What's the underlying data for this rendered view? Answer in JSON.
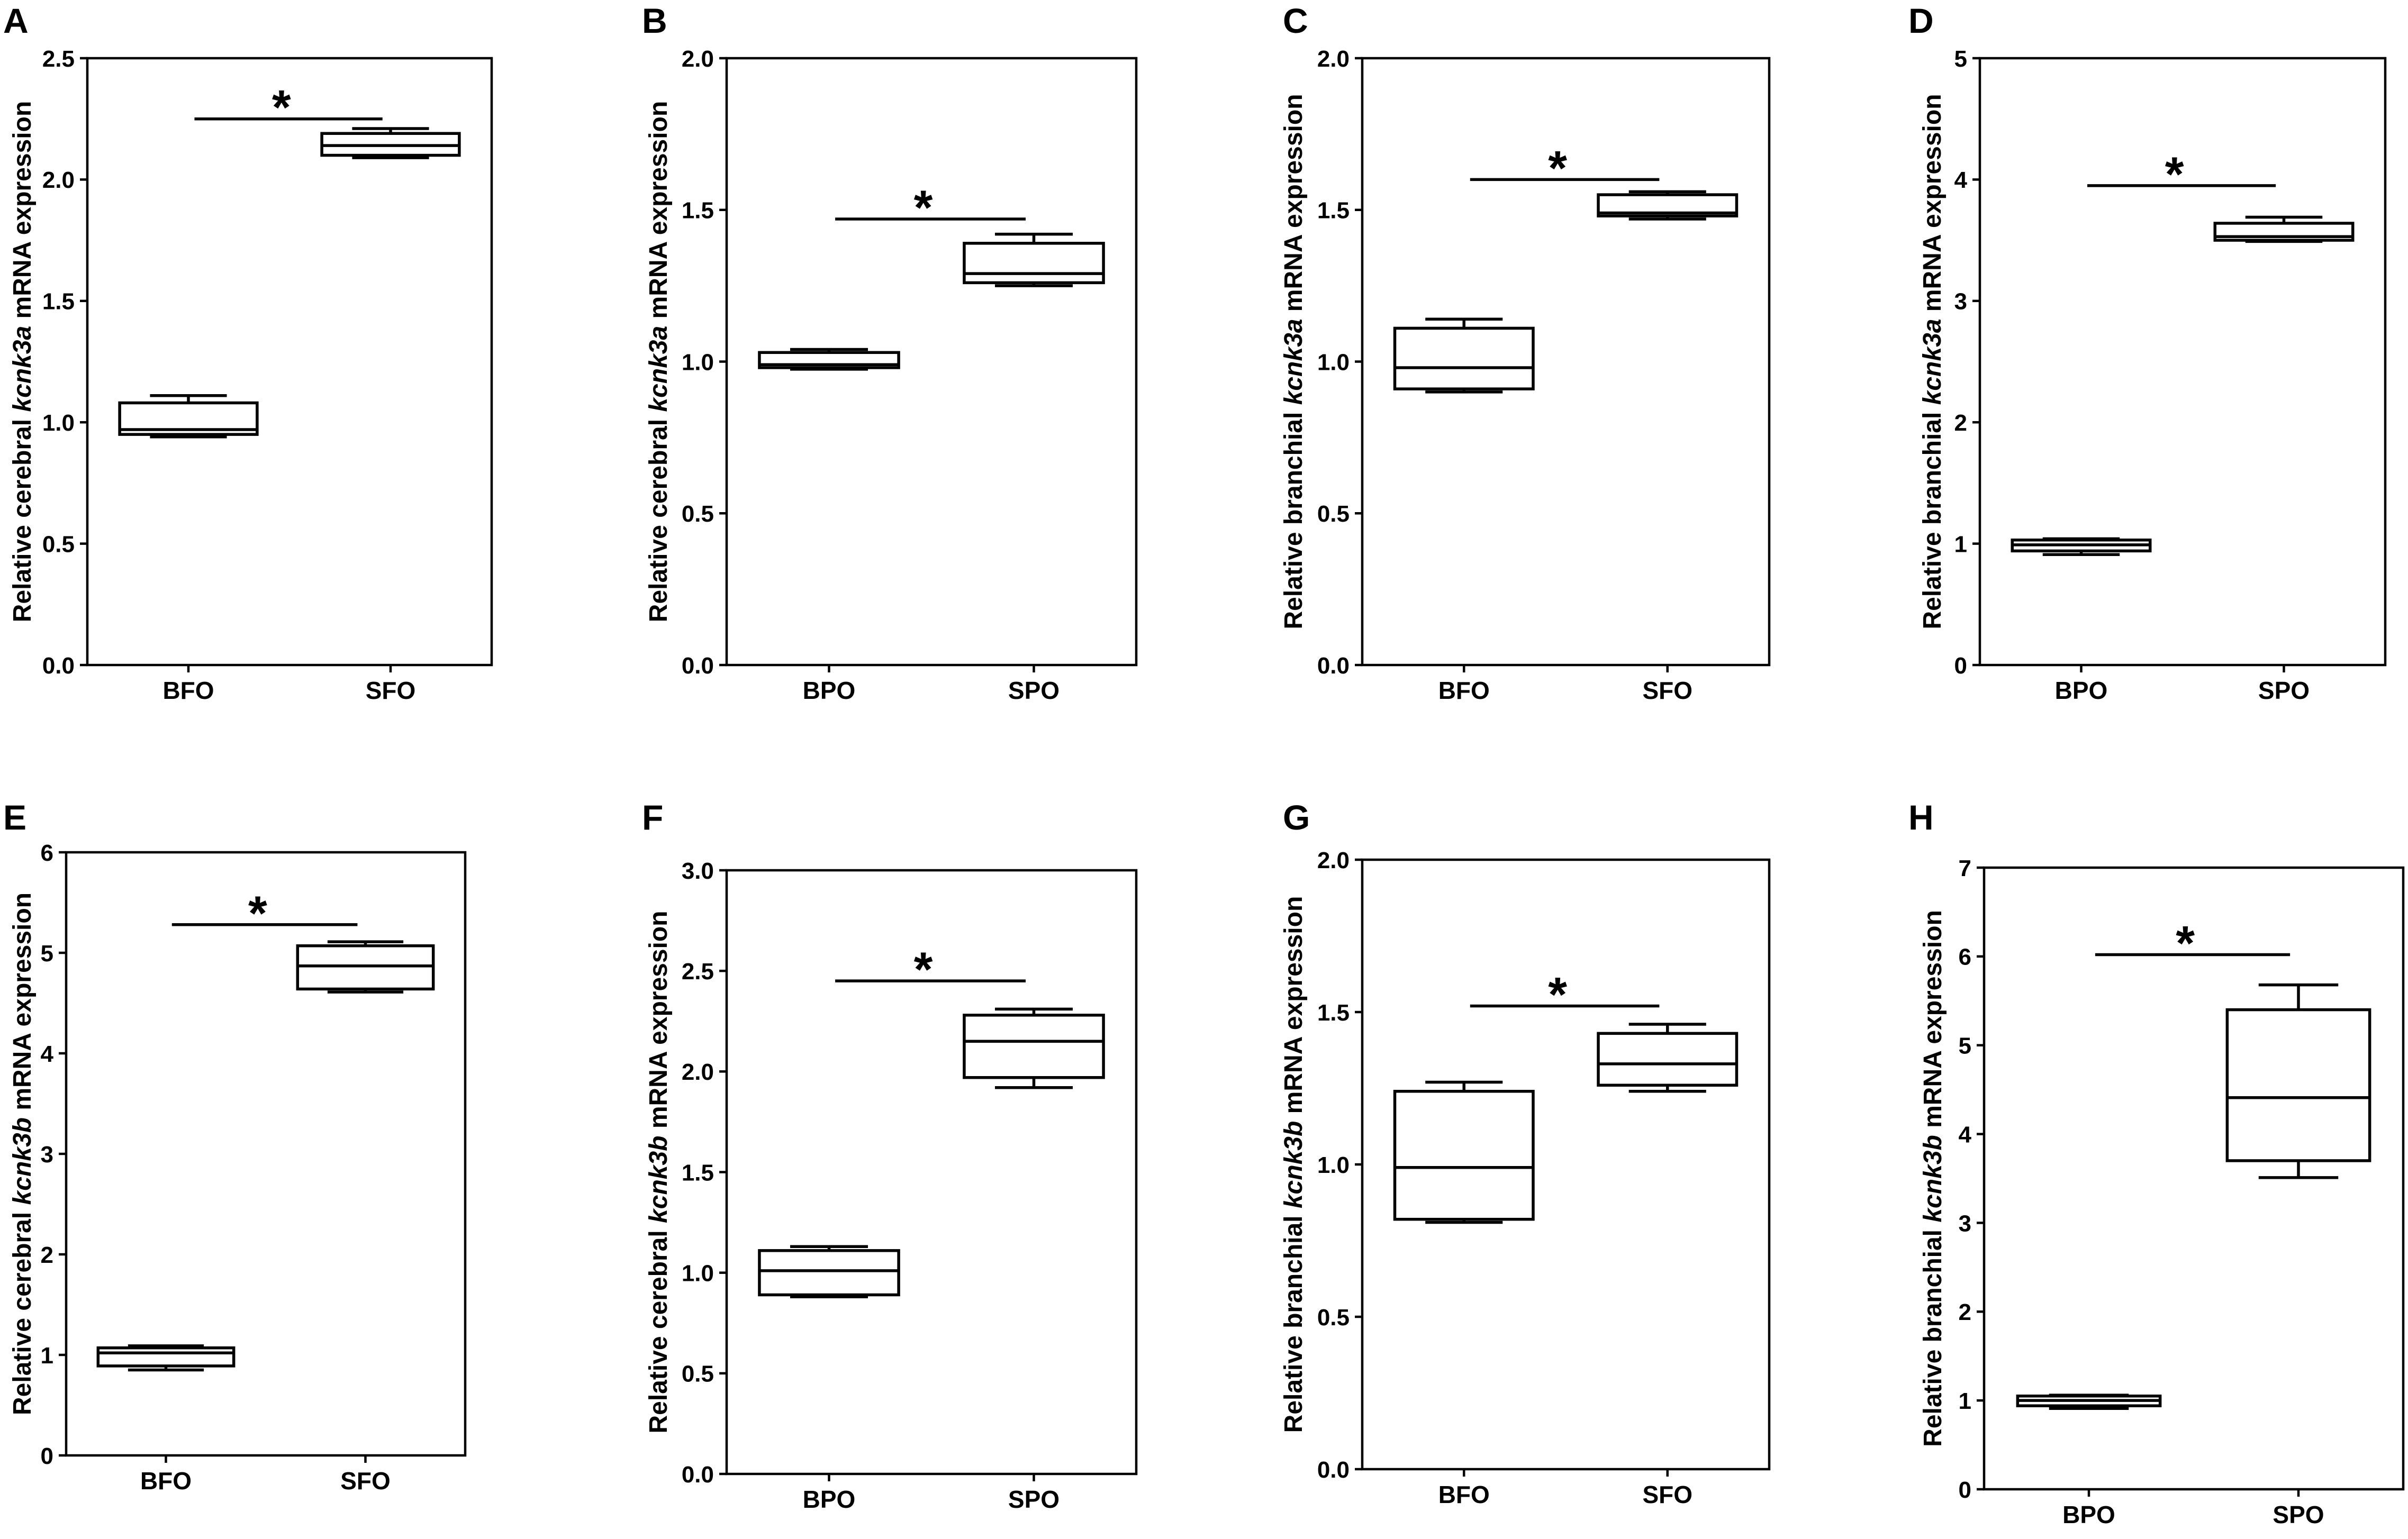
{
  "chart_data": [
    {
      "panel": "A",
      "type": "box",
      "ylim": [
        0,
        2.5
      ],
      "yticks": [
        "0.0",
        "0.5",
        "1.0",
        "1.5",
        "2.0",
        "2.5"
      ],
      "ylabel": {
        "pre": "Relative cerebral",
        "gene": "kcnk3a",
        "post": "mRNA expression"
      },
      "boxes": [
        {
          "category": "BFO",
          "min": 0.94,
          "q1": 0.95,
          "median": 0.97,
          "q3": 1.08,
          "max": 1.11
        },
        {
          "category": "SFO",
          "min": 2.09,
          "q1": 2.1,
          "median": 2.14,
          "q3": 2.19,
          "max": 2.21
        }
      ],
      "significance": {
        "y": 2.25,
        "label": "*"
      }
    },
    {
      "panel": "B",
      "type": "box",
      "ylim": [
        0,
        2.0
      ],
      "yticks": [
        "0.0",
        "0.5",
        "1.0",
        "1.5",
        "2.0"
      ],
      "ylabel": {
        "pre": "Relative cerebral",
        "gene": "kcnk3a",
        "post": "mRNA expression"
      },
      "boxes": [
        {
          "category": "BPO",
          "min": 0.975,
          "q1": 0.98,
          "median": 0.99,
          "q3": 1.03,
          "max": 1.04
        },
        {
          "category": "SPO",
          "min": 1.25,
          "q1": 1.26,
          "median": 1.29,
          "q3": 1.39,
          "max": 1.42
        }
      ],
      "significance": {
        "y": 1.47,
        "label": "*"
      }
    },
    {
      "panel": "C",
      "type": "box",
      "ylim": [
        0,
        2.0
      ],
      "yticks": [
        "0.0",
        "0.5",
        "1.0",
        "1.5",
        "2.0"
      ],
      "ylabel": {
        "pre": "Relative branchial",
        "gene": "kcnk3a",
        "post": "mRNA expression"
      },
      "boxes": [
        {
          "category": "BFO",
          "min": 0.9,
          "q1": 0.91,
          "median": 0.98,
          "q3": 1.11,
          "max": 1.14
        },
        {
          "category": "SFO",
          "min": 1.47,
          "q1": 1.48,
          "median": 1.49,
          "q3": 1.55,
          "max": 1.56
        }
      ],
      "significance": {
        "y": 1.6,
        "label": "*"
      }
    },
    {
      "panel": "D",
      "type": "box",
      "ylim": [
        0,
        5
      ],
      "yticks": [
        "0",
        "1",
        "2",
        "3",
        "4",
        "5"
      ],
      "ylabel": {
        "pre": "Relative branchial",
        "gene": "kcnk3a",
        "post": "mRNA expression"
      },
      "boxes": [
        {
          "category": "BPO",
          "min": 0.91,
          "q1": 0.94,
          "median": 0.99,
          "q3": 1.03,
          "max": 1.04
        },
        {
          "category": "SPO",
          "min": 3.49,
          "q1": 3.5,
          "median": 3.53,
          "q3": 3.64,
          "max": 3.69
        }
      ],
      "significance": {
        "y": 3.95,
        "label": "*"
      }
    },
    {
      "panel": "E",
      "type": "box",
      "ylim": [
        0,
        6
      ],
      "yticks": [
        "0",
        "1",
        "2",
        "3",
        "4",
        "5",
        "6"
      ],
      "ylabel": {
        "pre": "Relative cerebral",
        "gene": "kcnk3b",
        "post": "mRNA expression"
      },
      "boxes": [
        {
          "category": "BFO",
          "min": 0.85,
          "q1": 0.89,
          "median": 1.02,
          "q3": 1.07,
          "max": 1.09
        },
        {
          "category": "SFO",
          "min": 4.61,
          "q1": 4.64,
          "median": 4.87,
          "q3": 5.07,
          "max": 5.11
        }
      ],
      "significance": {
        "y": 5.28,
        "label": "*"
      }
    },
    {
      "panel": "F",
      "type": "box",
      "ylim": [
        0,
        3.0
      ],
      "yticks": [
        "0.0",
        "0.5",
        "1.0",
        "1.5",
        "2.0",
        "2.5",
        "3.0"
      ],
      "ylabel": {
        "pre": "Relative cerebral",
        "gene": "kcnk3b",
        "post": "mRNA expression"
      },
      "boxes": [
        {
          "category": "BPO",
          "min": 0.88,
          "q1": 0.89,
          "median": 1.01,
          "q3": 1.11,
          "max": 1.13
        },
        {
          "category": "SPO",
          "min": 1.92,
          "q1": 1.97,
          "median": 2.15,
          "q3": 2.28,
          "max": 2.31
        }
      ],
      "significance": {
        "y": 2.45,
        "label": "*"
      }
    },
    {
      "panel": "G",
      "type": "box",
      "ylim": [
        0,
        2.0
      ],
      "yticks": [
        "0.0",
        "0.5",
        "1.0",
        "1.5",
        "2.0"
      ],
      "ylabel": {
        "pre": "Relative branchial",
        "gene": "kcnk3b",
        "post": "mRNA expression"
      },
      "boxes": [
        {
          "category": "BFO",
          "min": 0.81,
          "q1": 0.82,
          "median": 0.99,
          "q3": 1.24,
          "max": 1.27
        },
        {
          "category": "SFO",
          "min": 1.24,
          "q1": 1.26,
          "median": 1.33,
          "q3": 1.43,
          "max": 1.46
        }
      ],
      "significance": {
        "y": 1.52,
        "label": "*"
      }
    },
    {
      "panel": "H",
      "type": "box",
      "ylim": [
        0,
        7
      ],
      "yticks": [
        "0",
        "1",
        "2",
        "3",
        "4",
        "5",
        "6",
        "7"
      ],
      "ylabel": {
        "pre": "Relative branchial",
        "gene": "kcnk3b",
        "post": "mRNA expression"
      },
      "boxes": [
        {
          "category": "BPO",
          "min": 0.91,
          "q1": 0.94,
          "median": 1.0,
          "q3": 1.05,
          "max": 1.06
        },
        {
          "category": "SPO",
          "min": 3.51,
          "q1": 3.7,
          "median": 4.41,
          "q3": 5.4,
          "max": 5.68
        }
      ],
      "significance": {
        "y": 6.02,
        "label": "*"
      }
    }
  ]
}
